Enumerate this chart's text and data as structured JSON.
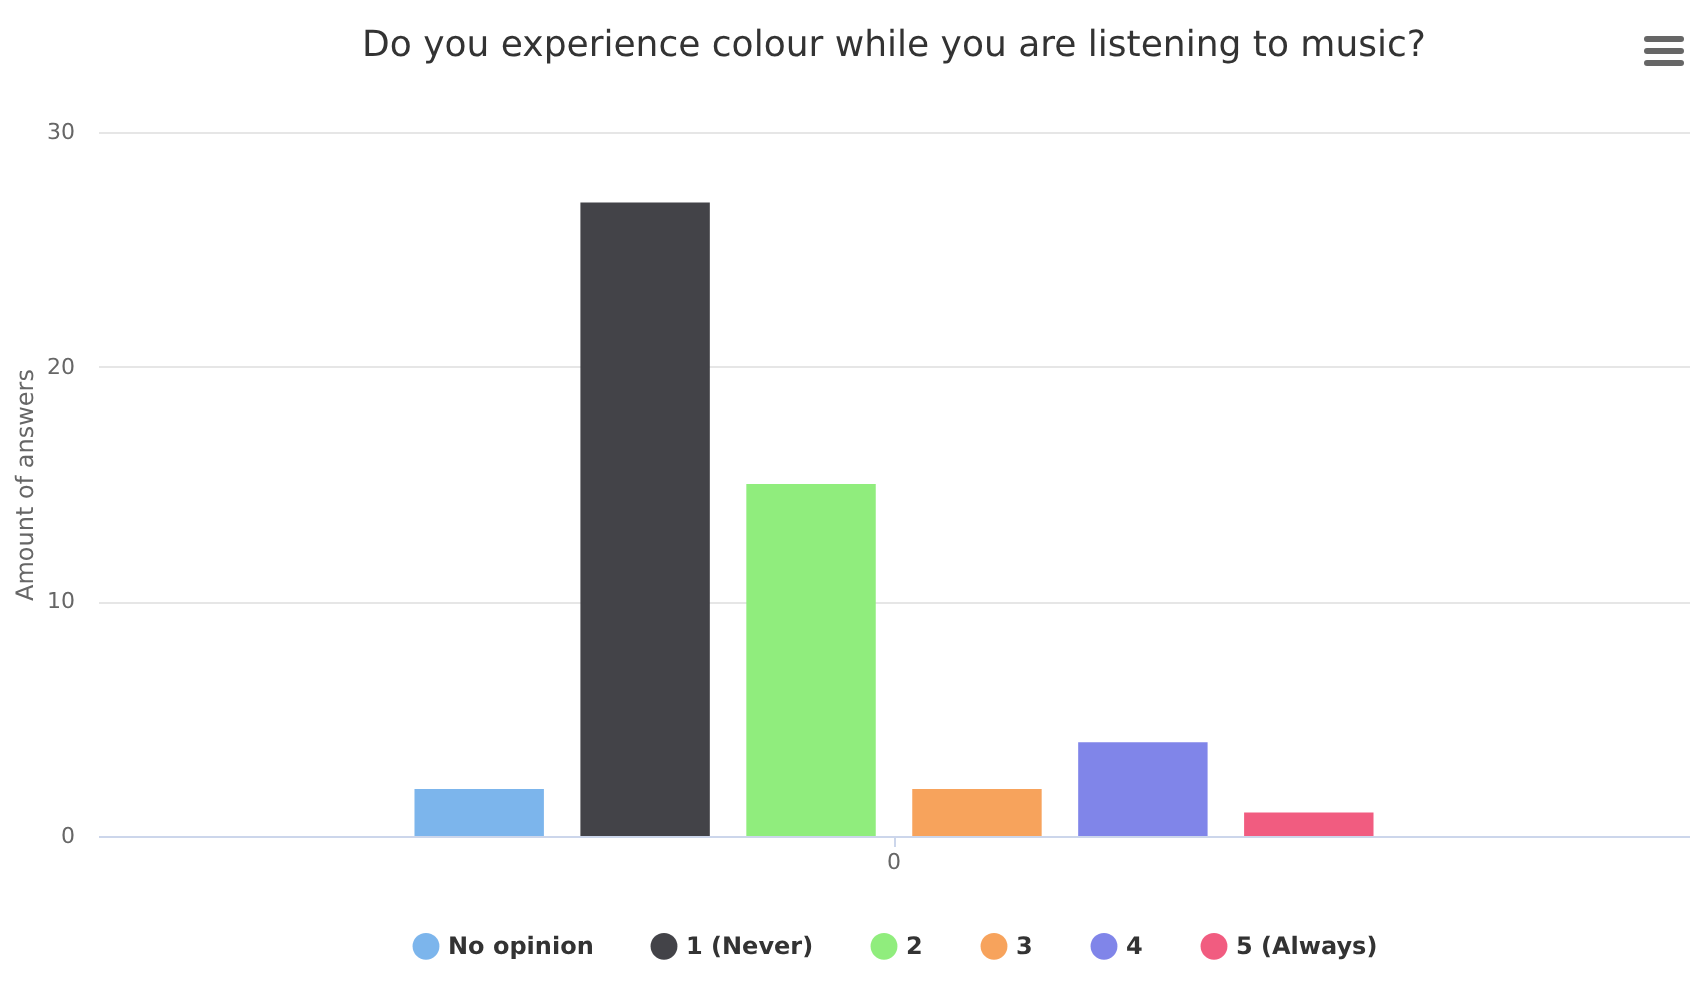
{
  "chart_data": {
    "type": "bar",
    "title": "Do you experience colour while you are listening to music?",
    "ylabel": "Amount of answers",
    "categories": [
      "0"
    ],
    "series": [
      {
        "name": "No opinion",
        "color": "#7cb5ec",
        "values": [
          2
        ]
      },
      {
        "name": "1 (Never)",
        "color": "#434348",
        "values": [
          27
        ]
      },
      {
        "name": "2",
        "color": "#90ed7d",
        "values": [
          15
        ]
      },
      {
        "name": "3",
        "color": "#f7a35c",
        "values": [
          2
        ]
      },
      {
        "name": "4",
        "color": "#8085e9",
        "values": [
          4
        ]
      },
      {
        "name": "5 (Always)",
        "color": "#f15c80",
        "values": [
          1
        ]
      }
    ],
    "ylim": [
      0,
      30
    ],
    "yticks": [
      0,
      10,
      20,
      30
    ],
    "grid": "y",
    "legend": "bottom"
  }
}
